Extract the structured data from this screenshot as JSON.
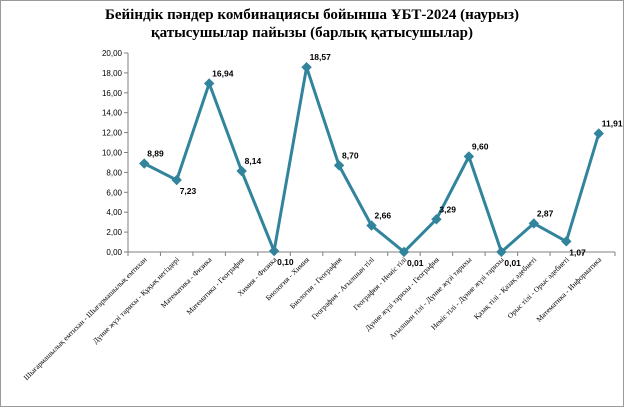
{
  "chart_data": {
    "type": "line",
    "title": "Бейіндік пәндер комбинациясы бойынша ҰБТ-2024 (наурыз)",
    "subtitle": "қатысушылар пайызы (барлық қатысушылар)",
    "xlabel": "",
    "ylabel": "",
    "ylim": [
      0,
      20
    ],
    "yticks": [
      "0,00",
      "2,00",
      "4,00",
      "6,00",
      "8,00",
      "10,00",
      "12,00",
      "14,00",
      "16,00",
      "18,00",
      "20,00"
    ],
    "grid": false,
    "legend": "none",
    "color": "#31849B",
    "categories": [
      "Шығармашылық емтихан - Шығармашылық емтихан",
      "Дүние жүзі тарихы - Құқық негіздері",
      "Математика - Физика",
      "Математика - География",
      "Химия - Физика",
      "Биология - Химия",
      "Биология - География",
      "География - Ағылшын тілі",
      "География - Неміс тілі",
      "Дүние жүзі тарихы - География",
      "Ағылшын тілі - Дүние жүзі тарихы",
      "Неміс тілі - Дүние жүзі тарихы",
      "Қазақ тілі - Қазақ әдебиеті",
      "Орыс тілі - Орыс әдебиеті",
      "Математика - Информатика"
    ],
    "values": [
      8.89,
      7.23,
      16.94,
      8.14,
      0.1,
      18.57,
      8.7,
      2.66,
      0.01,
      3.29,
      9.6,
      0.01,
      2.87,
      1.07,
      11.91
    ],
    "data_labels": [
      "8,89",
      "7,23",
      "16,94",
      "8,14",
      "0,10",
      "18,57",
      "8,70",
      "2,66",
      "0,01",
      "3,29",
      "9,60",
      "0,01",
      "2,87",
      "1,07",
      "11,91"
    ]
  }
}
